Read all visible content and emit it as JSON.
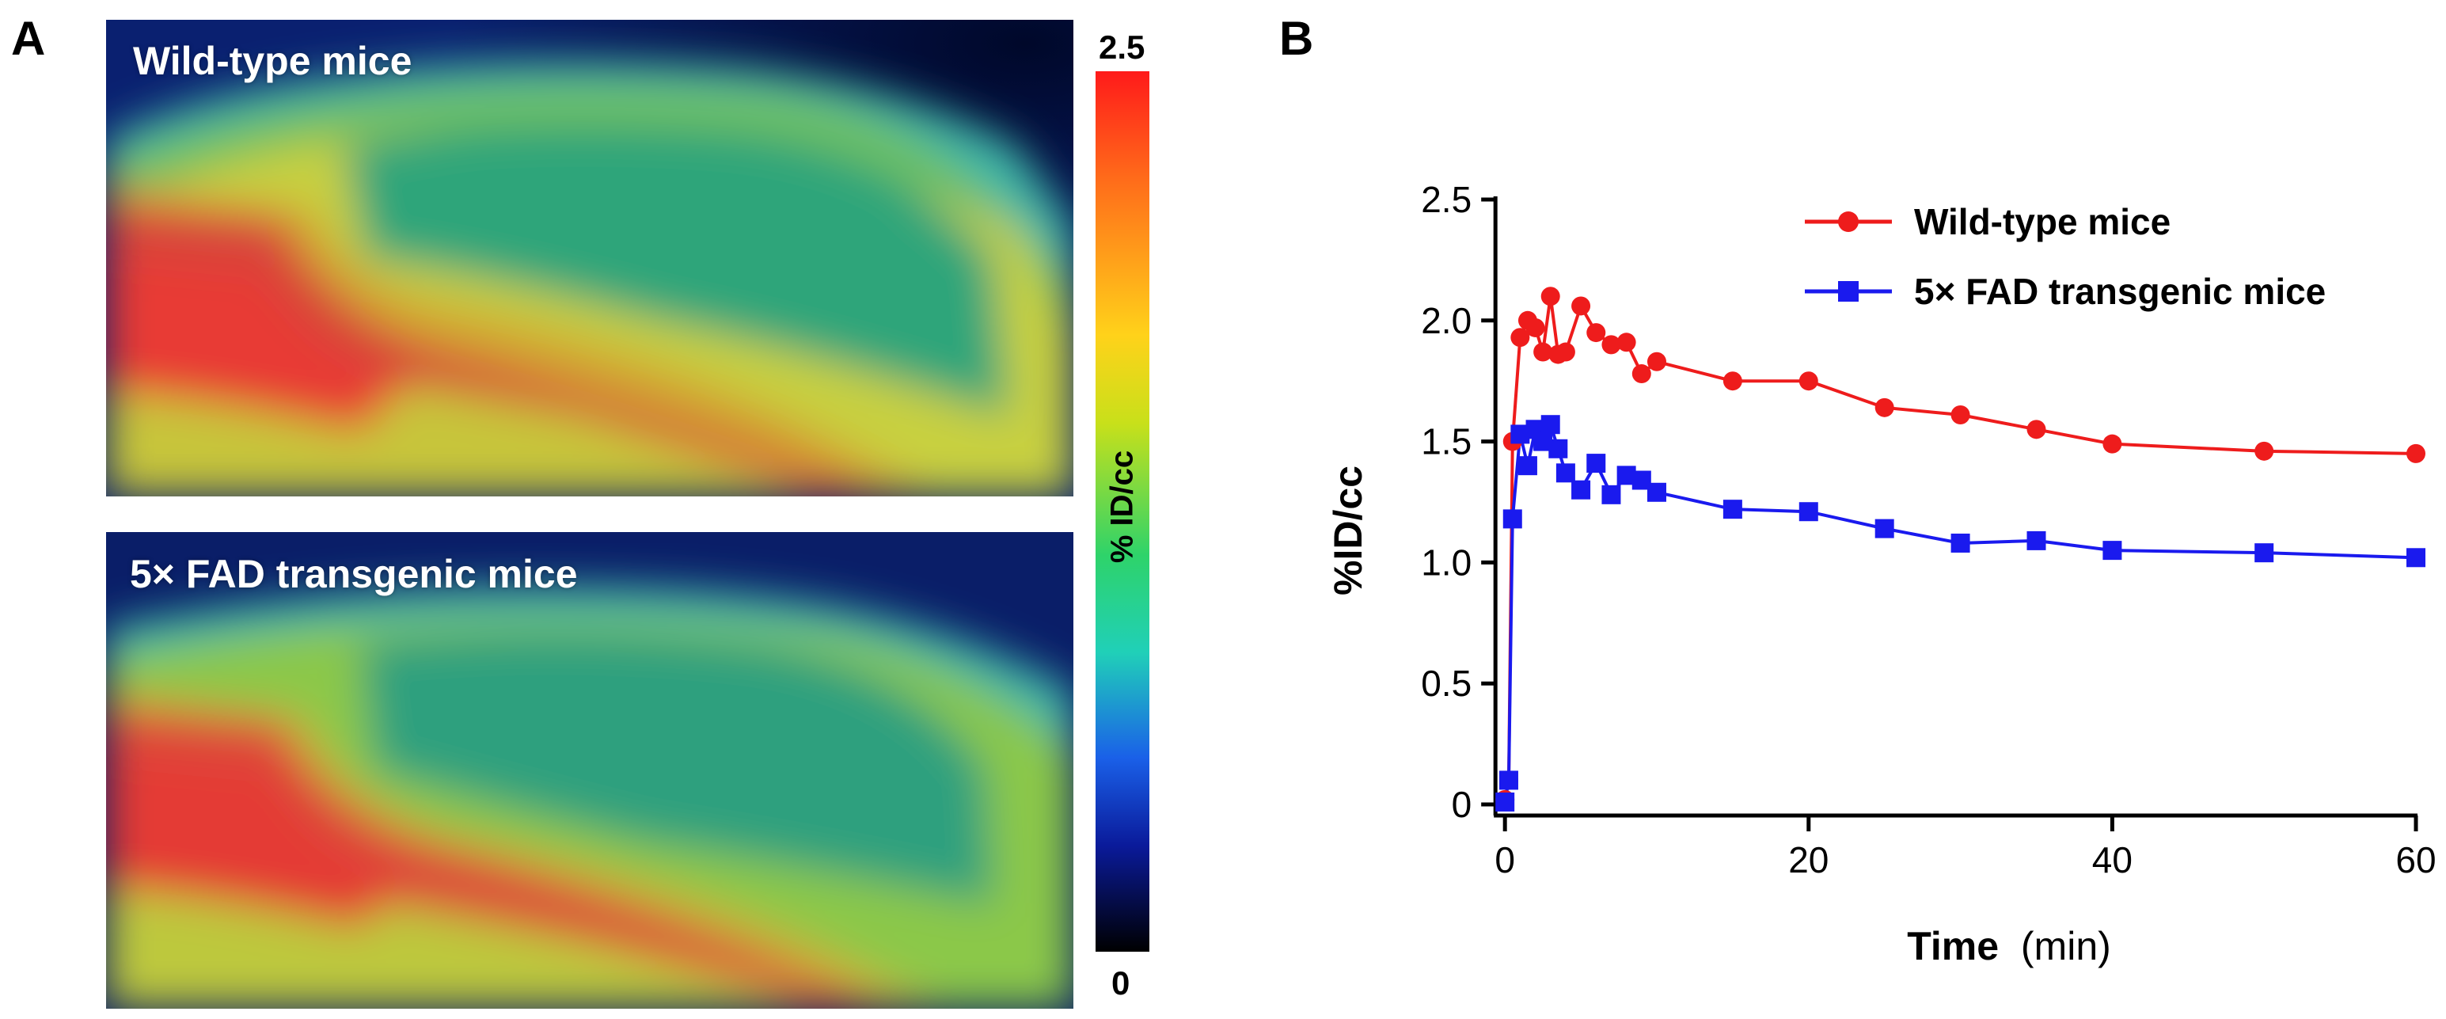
{
  "panels": {
    "a": {
      "letter": "A",
      "images": [
        {
          "label": "Wild-type mice"
        },
        {
          "label": "5× FAD transgenic mice"
        }
      ],
      "colorbar": {
        "max_label": "2.5",
        "min_label": "0",
        "label": "% ID/cc"
      }
    },
    "b": {
      "letter": "B"
    }
  },
  "colors": {
    "wild_type": "#ee1c1c",
    "fad": "#1a1aee"
  },
  "chart_data": {
    "type": "line",
    "title": "",
    "xlabel": "Time",
    "xlabel_unit": "(min)",
    "ylabel": "%ID/cc",
    "xlim": [
      -1,
      60
    ],
    "ylim": [
      0,
      2.5
    ],
    "xticks": [
      0,
      20,
      40,
      60
    ],
    "yticks": [
      0,
      0.5,
      1.0,
      1.5,
      2.0,
      2.5
    ],
    "ytick_labels": [
      "0",
      "0.5",
      "1.0",
      "1.5",
      "2.0",
      "2.5"
    ],
    "grid": false,
    "legend": "top-right",
    "series": [
      {
        "name": "Wild-type mice",
        "marker": "circle",
        "color": "#ee1c1c",
        "x": [
          0,
          0.25,
          0.5,
          1,
          1.5,
          2,
          2.5,
          3,
          3.5,
          4,
          5,
          6,
          7,
          8,
          9,
          10,
          15,
          20,
          25,
          30,
          35,
          40,
          50,
          60
        ],
        "y": [
          0.02,
          0.1,
          1.5,
          1.93,
          2.0,
          1.97,
          1.87,
          2.1,
          1.86,
          1.87,
          2.06,
          1.95,
          1.9,
          1.91,
          1.78,
          1.83,
          1.75,
          1.75,
          1.64,
          1.61,
          1.55,
          1.49,
          1.46,
          1.45
        ]
      },
      {
        "name": "5× FAD transgenic mice",
        "marker": "square",
        "color": "#1a1aee",
        "x": [
          0,
          0.25,
          0.5,
          1,
          1.5,
          2,
          2.5,
          3,
          3.5,
          4,
          5,
          6,
          7,
          8,
          9,
          10,
          15,
          20,
          25,
          30,
          35,
          40,
          50,
          60
        ],
        "y": [
          0.01,
          0.1,
          1.18,
          1.53,
          1.4,
          1.55,
          1.5,
          1.57,
          1.47,
          1.37,
          1.3,
          1.41,
          1.28,
          1.36,
          1.34,
          1.29,
          1.22,
          1.21,
          1.14,
          1.08,
          1.09,
          1.05,
          1.04,
          1.02
        ]
      }
    ]
  }
}
